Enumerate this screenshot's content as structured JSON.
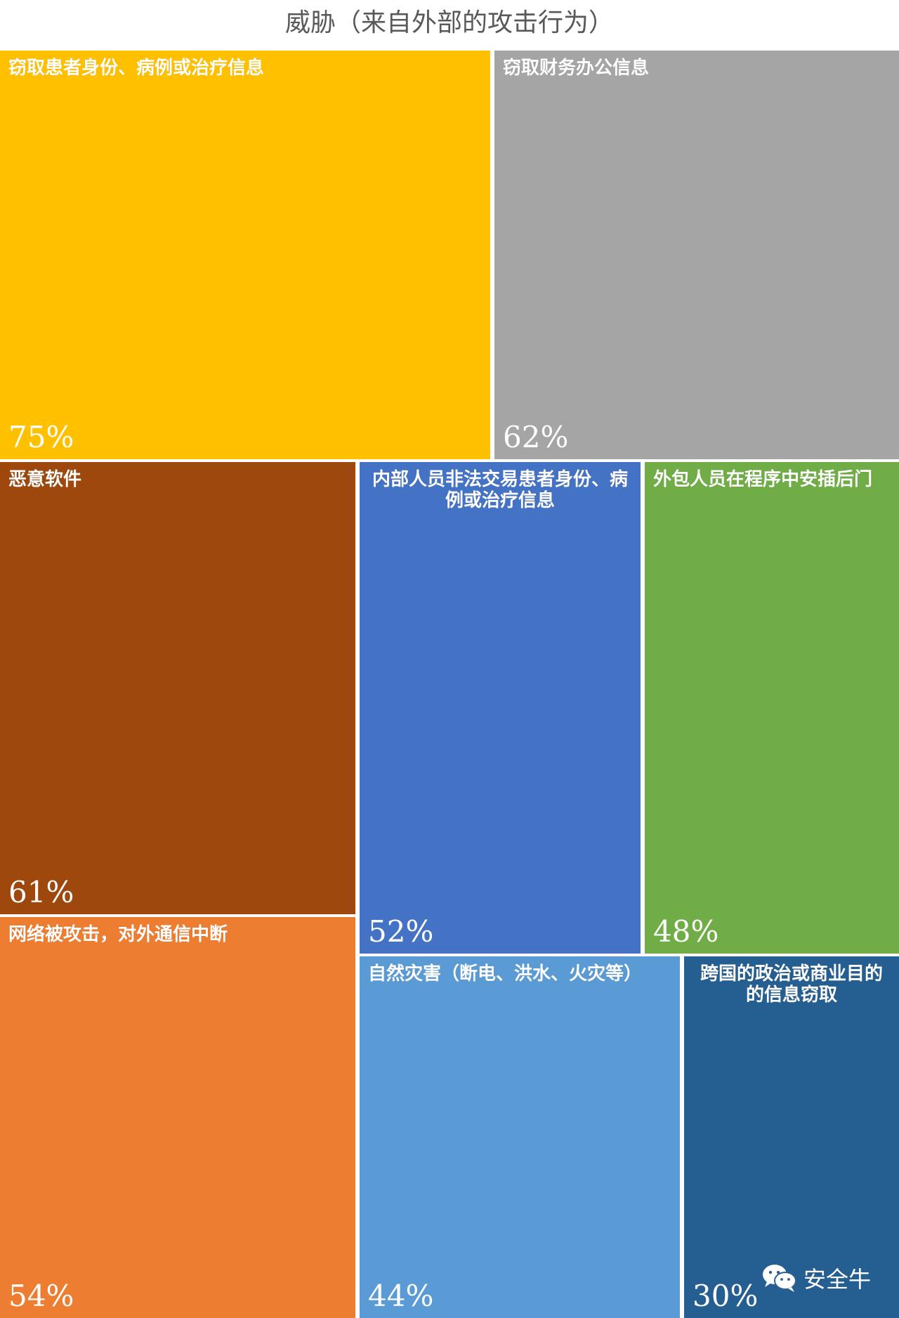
{
  "chart_data": {
    "type": "treemap",
    "title": "威胁（来自外部的攻击行为）",
    "items": [
      {
        "label": "窃取患者身份、病例或治疗信息",
        "value": 75,
        "value_label": "75%",
        "color": "#FFC000",
        "label_align": "left"
      },
      {
        "label": "窃取财务办公信息",
        "value": 62,
        "value_label": "62%",
        "color": "#A5A5A5",
        "label_align": "left"
      },
      {
        "label": "恶意软件",
        "value": 61,
        "value_label": "61%",
        "color": "#9E480E",
        "label_align": "left"
      },
      {
        "label": "内部人员非法交易患者身份、病例或治疗信息",
        "value": 52,
        "value_label": "52%",
        "color": "#4472C4",
        "label_align": "center"
      },
      {
        "label": "外包人员在程序中安插后门",
        "value": 48,
        "value_label": "48%",
        "color": "#70AD47",
        "label_align": "left"
      },
      {
        "label": "网络被攻击，对外通信中断",
        "value": 54,
        "value_label": "54%",
        "color": "#ED7D31",
        "label_align": "left"
      },
      {
        "label": "自然灾害（断电、洪水、火灾等）",
        "value": 44,
        "value_label": "44%",
        "color": "#5B9BD5",
        "label_align": "left"
      },
      {
        "label": "跨国的政治或商业目的的信息窃取",
        "value": 30,
        "value_label": "30%",
        "color": "#255E91",
        "label_align": "center"
      }
    ]
  },
  "watermark": {
    "text": "安全牛",
    "icon": "wechat-icon"
  }
}
